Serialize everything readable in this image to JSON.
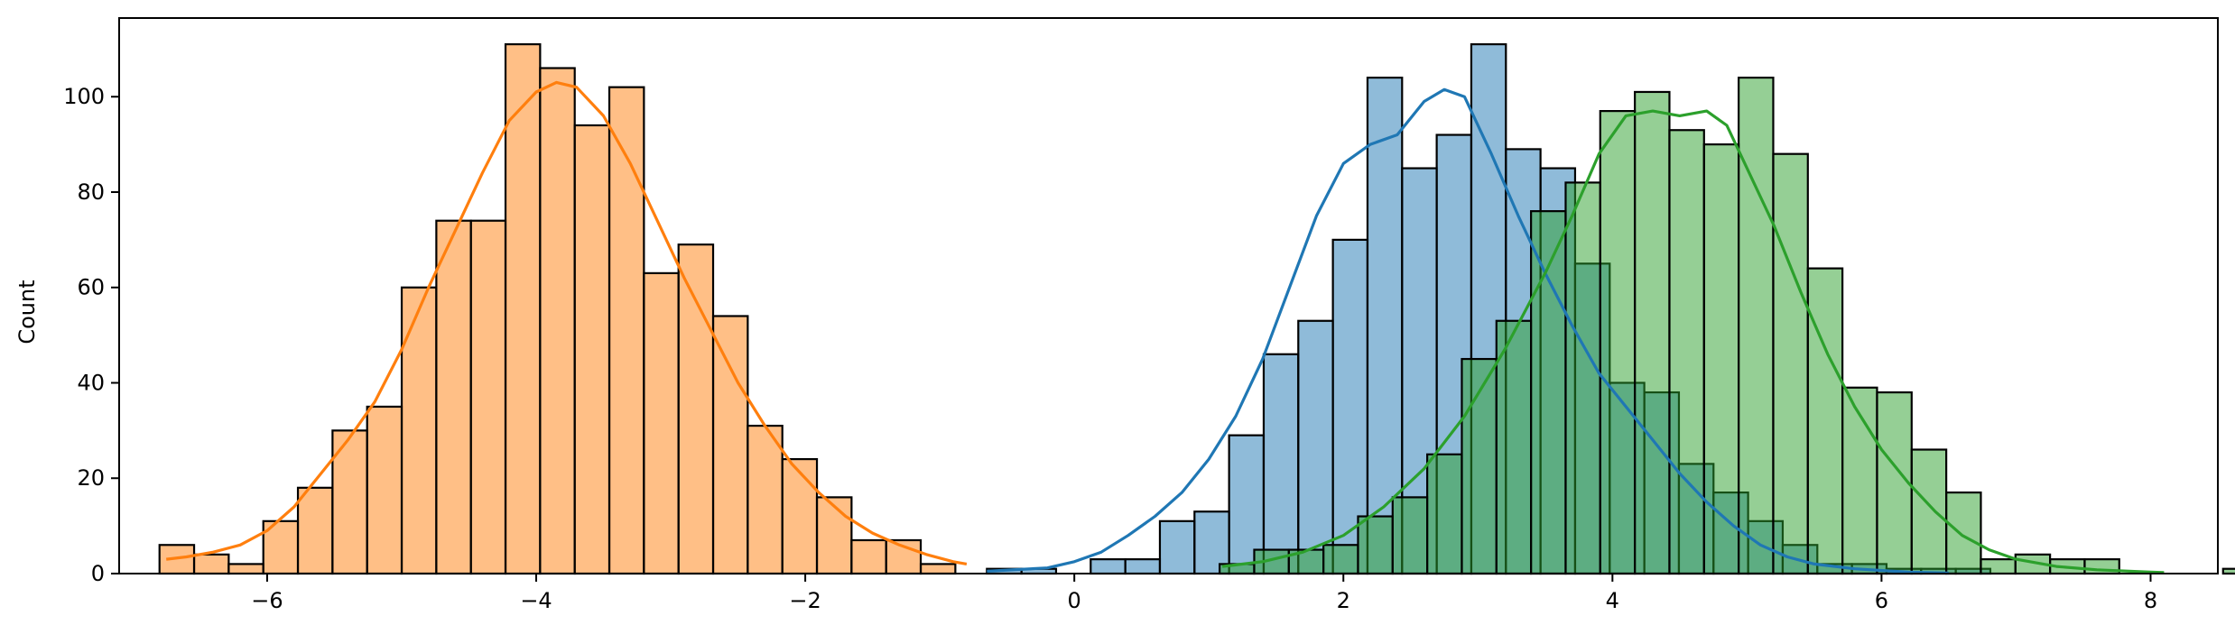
{
  "chart_data": {
    "type": "histogram",
    "title": "",
    "xlabel": "",
    "ylabel": "Count",
    "xlim": [
      -7.1,
      8.5
    ],
    "ylim": [
      0,
      116.5
    ],
    "grid": false,
    "legend": "none",
    "x_ticks": [
      -6,
      -4,
      -2,
      0,
      2,
      4,
      6,
      8
    ],
    "x_tick_labels": [
      "−6",
      "−4",
      "−2",
      "0",
      "2",
      "4",
      "6",
      "8"
    ],
    "y_ticks": [
      0,
      20,
      40,
      60,
      80,
      100
    ],
    "y_tick_labels": [
      "0",
      "20",
      "40",
      "60",
      "80",
      "100"
    ],
    "colors": {
      "blue": "#1f77b4",
      "orange": "#ff7f0e",
      "green": "#2ca02c",
      "edge": "#000000"
    },
    "series": [
      {
        "color": "blue",
        "bin_start": -0.65,
        "bin_width": 0.2572,
        "counts": [
          1,
          1,
          0,
          3,
          3,
          11,
          13,
          29,
          46,
          53,
          70,
          104,
          85,
          92,
          111,
          89,
          85,
          65,
          40,
          38,
          23,
          17,
          11,
          6,
          2,
          2,
          1,
          1,
          1
        ],
        "kde": [
          [
            -0.65,
            0.5
          ],
          [
            -0.2,
            1.2
          ],
          [
            0.0,
            2.5
          ],
          [
            0.2,
            4.5
          ],
          [
            0.4,
            8
          ],
          [
            0.6,
            12
          ],
          [
            0.8,
            17
          ],
          [
            1.0,
            24
          ],
          [
            1.2,
            33
          ],
          [
            1.4,
            45
          ],
          [
            1.6,
            60
          ],
          [
            1.8,
            75
          ],
          [
            2.0,
            86
          ],
          [
            2.2,
            90
          ],
          [
            2.4,
            92
          ],
          [
            2.6,
            99
          ],
          [
            2.75,
            101.5
          ],
          [
            2.9,
            100
          ],
          [
            3.1,
            88
          ],
          [
            3.3,
            75
          ],
          [
            3.5,
            63
          ],
          [
            3.7,
            52
          ],
          [
            3.9,
            42
          ],
          [
            4.1,
            35
          ],
          [
            4.3,
            28
          ],
          [
            4.5,
            21
          ],
          [
            4.7,
            15
          ],
          [
            4.9,
            10
          ],
          [
            5.1,
            6
          ],
          [
            5.3,
            3.5
          ],
          [
            5.5,
            2
          ],
          [
            5.8,
            1
          ],
          [
            6.2,
            0.3
          ],
          [
            6.5,
            0.1
          ]
        ]
      },
      {
        "color": "orange",
        "bin_start": -6.8,
        "bin_width": 0.2572,
        "counts": [
          6,
          4,
          2,
          11,
          18,
          30,
          35,
          60,
          74,
          74,
          111,
          106,
          94,
          102,
          63,
          69,
          54,
          31,
          24,
          16,
          7,
          7,
          2
        ],
        "kde": [
          [
            -6.75,
            3
          ],
          [
            -6.6,
            3.5
          ],
          [
            -6.4,
            4.5
          ],
          [
            -6.2,
            6
          ],
          [
            -6.0,
            9
          ],
          [
            -5.8,
            14
          ],
          [
            -5.6,
            21
          ],
          [
            -5.4,
            28
          ],
          [
            -5.2,
            36
          ],
          [
            -5.0,
            47
          ],
          [
            -4.8,
            60
          ],
          [
            -4.6,
            72
          ],
          [
            -4.4,
            84
          ],
          [
            -4.2,
            95
          ],
          [
            -4.0,
            101
          ],
          [
            -3.85,
            103
          ],
          [
            -3.7,
            102
          ],
          [
            -3.5,
            96
          ],
          [
            -3.3,
            86
          ],
          [
            -3.1,
            74
          ],
          [
            -2.9,
            62
          ],
          [
            -2.7,
            51
          ],
          [
            -2.5,
            40
          ],
          [
            -2.3,
            31
          ],
          [
            -2.1,
            23
          ],
          [
            -1.9,
            17
          ],
          [
            -1.7,
            12
          ],
          [
            -1.5,
            8.5
          ],
          [
            -1.3,
            6
          ],
          [
            -1.1,
            4
          ],
          [
            -0.9,
            2.5
          ],
          [
            -0.8,
            2
          ]
        ]
      },
      {
        "color": "green",
        "bin_start": 1.08,
        "bin_width": 0.2572,
        "counts": [
          2,
          5,
          5,
          6,
          12,
          16,
          25,
          45,
          53,
          76,
          82,
          97,
          101,
          93,
          90,
          104,
          88,
          64,
          39,
          38,
          26,
          17,
          3,
          4,
          3,
          3,
          0,
          0,
          0,
          1
        ],
        "kde": [
          [
            1.1,
            1.5
          ],
          [
            1.4,
            2.5
          ],
          [
            1.7,
            4.5
          ],
          [
            2.0,
            8
          ],
          [
            2.3,
            14
          ],
          [
            2.6,
            22
          ],
          [
            2.9,
            33
          ],
          [
            3.2,
            47
          ],
          [
            3.5,
            63
          ],
          [
            3.7,
            75
          ],
          [
            3.9,
            88
          ],
          [
            4.1,
            96
          ],
          [
            4.3,
            97
          ],
          [
            4.5,
            96
          ],
          [
            4.7,
            97
          ],
          [
            4.85,
            94
          ],
          [
            5.0,
            85
          ],
          [
            5.2,
            73
          ],
          [
            5.4,
            59
          ],
          [
            5.6,
            46
          ],
          [
            5.8,
            35
          ],
          [
            6.0,
            26
          ],
          [
            6.2,
            19
          ],
          [
            6.4,
            13
          ],
          [
            6.6,
            8
          ],
          [
            6.8,
            5
          ],
          [
            7.0,
            3
          ],
          [
            7.3,
            1.5
          ],
          [
            7.6,
            0.8
          ],
          [
            8.0,
            0.3
          ],
          [
            8.1,
            0.2
          ]
        ]
      }
    ]
  }
}
